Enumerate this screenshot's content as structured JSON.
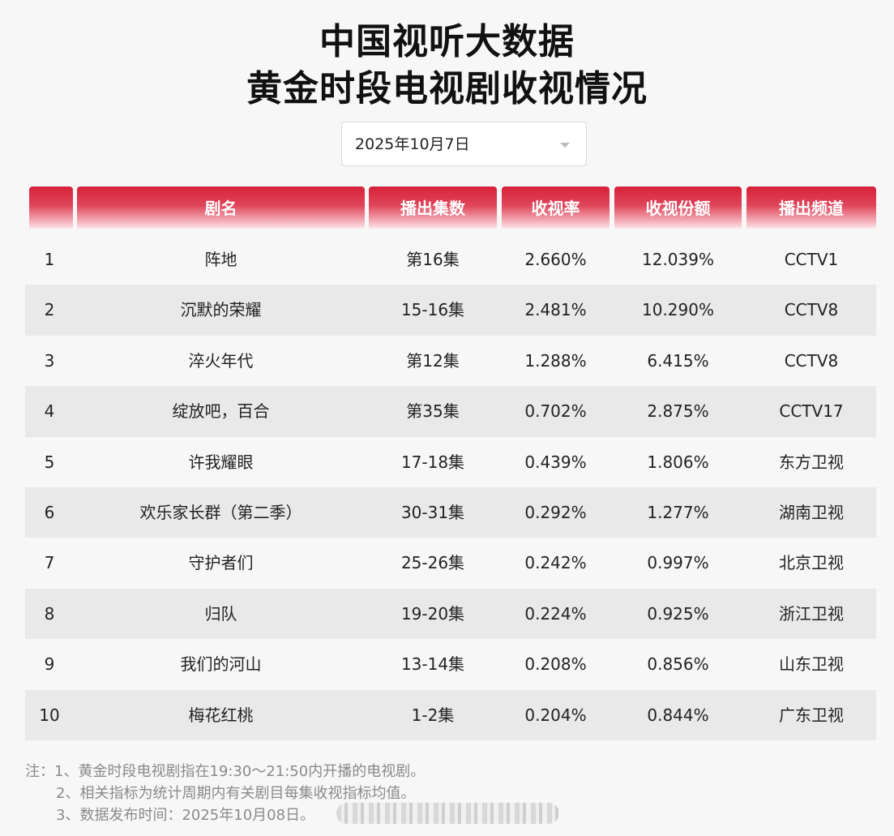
{
  "title": {
    "line1": "中国视听大数据",
    "line2": "黄金时段电视剧收视情况"
  },
  "date_select": {
    "value": "2025年10月7日",
    "icon": "chevron-down-icon"
  },
  "table": {
    "headers": {
      "rank": "",
      "name": "剧名",
      "episodes": "播出集数",
      "rating": "收视率",
      "share": "收视份额",
      "channel": "播出频道"
    },
    "rows": [
      {
        "rank": "1",
        "name": "阵地",
        "episodes": "第16集",
        "rating": "2.660%",
        "share": "12.039%",
        "channel": "CCTV1"
      },
      {
        "rank": "2",
        "name": "沉默的荣耀",
        "episodes": "15-16集",
        "rating": "2.481%",
        "share": "10.290%",
        "channel": "CCTV8"
      },
      {
        "rank": "3",
        "name": "淬火年代",
        "episodes": "第12集",
        "rating": "1.288%",
        "share": "6.415%",
        "channel": "CCTV8"
      },
      {
        "rank": "4",
        "name": "绽放吧，百合",
        "episodes": "第35集",
        "rating": "0.702%",
        "share": "2.875%",
        "channel": "CCTV17"
      },
      {
        "rank": "5",
        "name": "许我耀眼",
        "episodes": "17-18集",
        "rating": "0.439%",
        "share": "1.806%",
        "channel": "东方卫视"
      },
      {
        "rank": "6",
        "name": "欢乐家长群（第二季）",
        "episodes": "30-31集",
        "rating": "0.292%",
        "share": "1.277%",
        "channel": "湖南卫视"
      },
      {
        "rank": "7",
        "name": "守护者们",
        "episodes": "25-26集",
        "rating": "0.242%",
        "share": "0.997%",
        "channel": "北京卫视"
      },
      {
        "rank": "8",
        "name": "归队",
        "episodes": "19-20集",
        "rating": "0.224%",
        "share": "0.925%",
        "channel": "浙江卫视"
      },
      {
        "rank": "9",
        "name": "我们的河山",
        "episodes": "13-14集",
        "rating": "0.208%",
        "share": "0.856%",
        "channel": "山东卫视"
      },
      {
        "rank": "10",
        "name": "梅花红桃",
        "episodes": "1-2集",
        "rating": "0.204%",
        "share": "0.844%",
        "channel": "广东卫视"
      }
    ]
  },
  "notes": {
    "n1": "注：1、黄金时段电视剧指在19:30～21:50内开播的电视剧。",
    "n2": "2、相关指标为统计周期内有关剧目每集收视指标均值。",
    "n3": "3、数据发布时间：2025年10月08日。"
  },
  "colors": {
    "header_red": "#d7213a",
    "alt_row": "#e9e9e9",
    "background": "#f7f7f7"
  }
}
